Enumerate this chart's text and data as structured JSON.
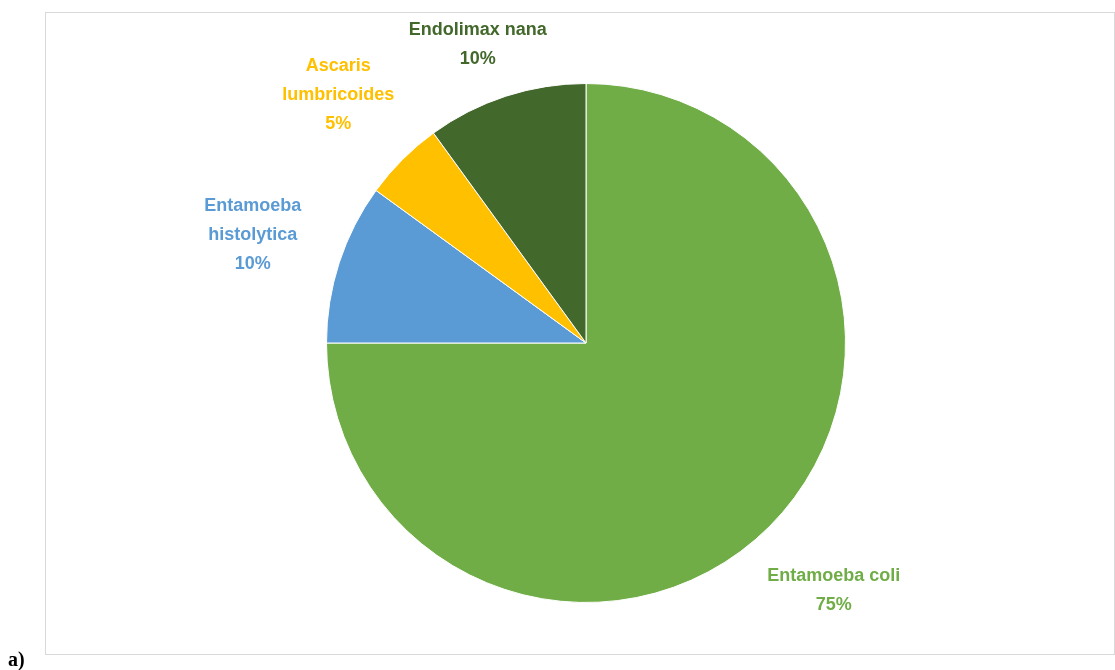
{
  "chart_data": {
    "type": "pie",
    "categories": [
      "Entamoeba coli",
      "Entamoeba histolytica",
      "Ascaris lumbricoides",
      "Endolimax nana"
    ],
    "values": [
      75,
      10,
      5,
      10
    ],
    "value_labels": [
      "75%",
      "10%",
      "5%",
      "10%"
    ],
    "colors": [
      "#70ad47",
      "#5b9bd5",
      "#ffc000",
      "#43682b"
    ],
    "legend": false,
    "annotations": [
      "a)"
    ]
  }
}
